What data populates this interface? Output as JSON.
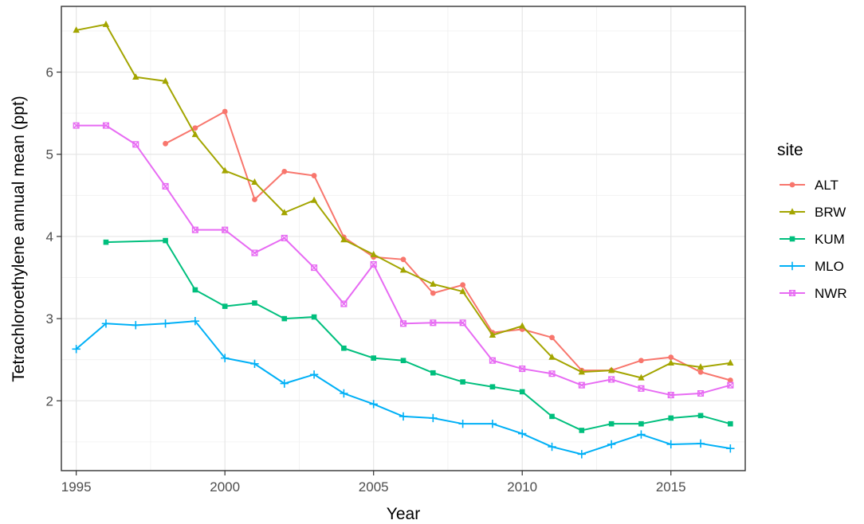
{
  "chart_data": {
    "type": "line",
    "xlabel": "Year",
    "ylabel": "Tetrachloroethylene annual mean (ppt)",
    "xlim": [
      1994.5,
      2017.5
    ],
    "ylim": [
      1.15,
      6.8
    ],
    "x_ticks": [
      1995,
      2000,
      2005,
      2010,
      2015
    ],
    "x_tick_labels": [
      "1995",
      "2000",
      "2005",
      "2010",
      "2015"
    ],
    "y_ticks": [
      2,
      3,
      4,
      5,
      6
    ],
    "y_tick_labels": [
      "2",
      "3",
      "4",
      "5",
      "6"
    ],
    "grid": true,
    "legend_title": "site",
    "legend_position": "right",
    "series": [
      {
        "name": "ALT",
        "color": "#F8766D",
        "marker": "circle",
        "x": [
          1998,
          1999,
          2000,
          2001,
          2002,
          2003,
          2004,
          2005,
          2006,
          2007,
          2008,
          2009,
          2010,
          2011,
          2012,
          2013,
          2014,
          2015,
          2016,
          2017
        ],
        "values": [
          5.13,
          5.32,
          5.52,
          4.45,
          4.79,
          4.74,
          3.99,
          3.75,
          3.72,
          3.31,
          3.41,
          2.83,
          2.87,
          2.77,
          2.37,
          2.37,
          2.49,
          2.53,
          2.35,
          2.25
        ]
      },
      {
        "name": "BRW",
        "color": "#A3A500",
        "marker": "triangle",
        "x": [
          1995,
          1996,
          1997,
          1998,
          1999,
          2000,
          2001,
          2002,
          2003,
          2004,
          2005,
          2006,
          2007,
          2008,
          2009,
          2010,
          2011,
          2012,
          2013,
          2014,
          2015,
          2016,
          2017
        ],
        "values": [
          6.51,
          6.58,
          5.94,
          5.89,
          5.24,
          4.8,
          4.66,
          4.29,
          4.44,
          3.96,
          3.78,
          3.59,
          3.42,
          3.33,
          2.8,
          2.91,
          2.53,
          2.35,
          2.37,
          2.28,
          2.46,
          2.41,
          2.46
        ]
      },
      {
        "name": "KUM",
        "color": "#00BF7D",
        "marker": "square",
        "x": [
          1996,
          1998,
          1999,
          2000,
          2001,
          2002,
          2003,
          2004,
          2005,
          2006,
          2007,
          2008,
          2009,
          2010,
          2011,
          2012,
          2013,
          2014,
          2015,
          2016,
          2017
        ],
        "values": [
          3.93,
          3.95,
          3.35,
          3.15,
          3.19,
          3.0,
          3.02,
          2.64,
          2.52,
          2.49,
          2.34,
          2.23,
          2.17,
          2.11,
          1.81,
          1.64,
          1.72,
          1.72,
          1.79,
          1.82,
          1.72
        ]
      },
      {
        "name": "MLO",
        "color": "#00B0F6",
        "marker": "plus",
        "x": [
          1995,
          1996,
          1997,
          1998,
          1999,
          2000,
          2001,
          2002,
          2003,
          2004,
          2005,
          2006,
          2007,
          2008,
          2009,
          2010,
          2011,
          2012,
          2013,
          2014,
          2015,
          2016,
          2017
        ],
        "values": [
          2.63,
          2.94,
          2.92,
          2.94,
          2.97,
          2.52,
          2.45,
          2.21,
          2.32,
          2.09,
          1.96,
          1.81,
          1.79,
          1.72,
          1.72,
          1.6,
          1.44,
          1.35,
          1.47,
          1.59,
          1.47,
          1.48,
          1.42
        ]
      },
      {
        "name": "NWR",
        "color": "#E76BF3",
        "marker": "boxed-cross",
        "x": [
          1995,
          1996,
          1997,
          1998,
          1999,
          2000,
          2001,
          2002,
          2003,
          2004,
          2005,
          2006,
          2007,
          2008,
          2009,
          2010,
          2011,
          2012,
          2013,
          2014,
          2015,
          2016,
          2017
        ],
        "values": [
          5.35,
          5.35,
          5.12,
          4.61,
          4.08,
          4.08,
          3.8,
          3.98,
          3.62,
          3.18,
          3.66,
          2.94,
          2.95,
          2.95,
          2.49,
          2.39,
          2.33,
          2.19,
          2.26,
          2.15,
          2.07,
          2.09,
          2.19
        ]
      }
    ]
  }
}
